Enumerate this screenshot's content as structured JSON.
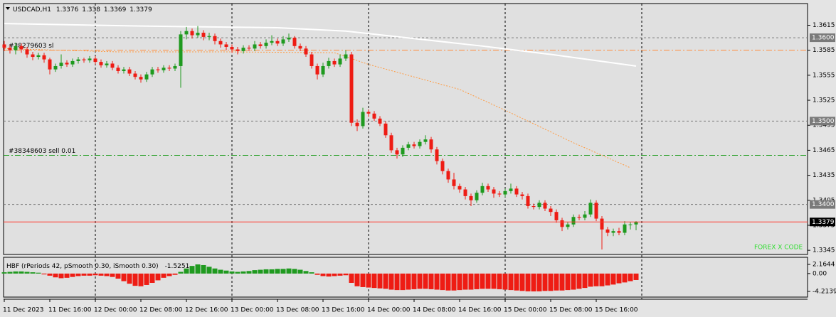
{
  "chart_data": [
    {
      "type": "candlestick",
      "symbol": "USDCAD,H1",
      "categories": [
        "11 Dec 2023",
        null,
        null,
        null,
        null,
        null,
        null,
        null,
        "11 Dec 16:00",
        null,
        null,
        null,
        null,
        null,
        null,
        null,
        "12 Dec 00:00",
        null,
        null,
        null,
        null,
        null,
        null,
        null,
        "12 Dec 08:00",
        null,
        null,
        null,
        null,
        null,
        null,
        null,
        "12 Dec 16:00",
        null,
        null,
        null,
        null,
        null,
        null,
        null,
        "13 Dec 00:00",
        null,
        null,
        null,
        null,
        null,
        null,
        null,
        "13 Dec 08:00",
        null,
        null,
        null,
        null,
        null,
        null,
        null,
        "13 Dec 16:00",
        null,
        null,
        null,
        null,
        null,
        null,
        null,
        "14 Dec 00:00",
        null,
        null,
        null,
        null,
        null,
        null,
        null,
        "14 Dec 08:00",
        null,
        null,
        null,
        null,
        null,
        null,
        null,
        "14 Dec 16:00",
        null,
        null,
        null,
        null,
        null,
        null,
        null,
        "15 Dec 00:00",
        null,
        null,
        null,
        null,
        null,
        null,
        null,
        "15 Dec 08:00",
        null,
        null,
        null,
        null,
        null,
        null,
        null,
        "15 Dec 16:00",
        null,
        null,
        null,
        null,
        null,
        null,
        null
      ],
      "open": [
        1.3592,
        1.3588,
        1.3585,
        1.359,
        1.3586,
        1.358,
        1.3577,
        1.3579,
        1.3574,
        1.3562,
        1.3566,
        1.357,
        1.3568,
        1.3572,
        1.3574,
        1.3573,
        1.3575,
        1.3571,
        1.3567,
        1.3569,
        1.3564,
        1.356,
        1.3562,
        1.3557,
        1.3553,
        1.355,
        1.3556,
        1.3562,
        1.3561,
        1.3564,
        1.3563,
        1.3566,
        1.3604,
        1.3608,
        1.3603,
        1.3606,
        1.3601,
        1.3602,
        1.3596,
        1.3592,
        1.3589,
        1.3586,
        1.3584,
        1.3588,
        1.3587,
        1.3592,
        1.359,
        1.3594,
        1.3596,
        1.3593,
        1.3598,
        1.36,
        1.359,
        1.3587,
        1.358,
        1.3566,
        1.3556,
        1.3566,
        1.3572,
        1.3568,
        1.3575,
        1.358,
        1.3498,
        1.3494,
        1.3511,
        1.3509,
        1.3503,
        1.3497,
        1.3483,
        1.3465,
        1.346,
        1.3468,
        1.3472,
        1.347,
        1.3475,
        1.3478,
        1.3466,
        1.3452,
        1.344,
        1.343,
        1.3422,
        1.3418,
        1.341,
        1.3405,
        1.3414,
        1.3422,
        1.3418,
        1.3413,
        1.3412,
        1.3416,
        1.3419,
        1.3412,
        1.341,
        1.3398,
        1.3397,
        1.3402,
        1.3395,
        1.3391,
        1.3381,
        1.3373,
        1.3376,
        1.3385,
        1.3384,
        1.3388,
        1.3402,
        1.3383,
        1.337,
        1.3366,
        1.3368,
        1.3366,
        1.3376,
        1.3376
      ],
      "high": [
        1.3596,
        1.3591,
        1.3594,
        1.3593,
        1.3589,
        1.3583,
        1.3582,
        1.3582,
        1.3576,
        1.3569,
        1.358,
        1.3573,
        1.3575,
        1.3577,
        1.3576,
        1.3578,
        1.3578,
        1.3574,
        1.3572,
        1.3572,
        1.3567,
        1.3565,
        1.3565,
        1.356,
        1.3556,
        1.3559,
        1.3565,
        1.3565,
        1.3567,
        1.3567,
        1.3569,
        1.3608,
        1.3613,
        1.3611,
        1.3614,
        1.3609,
        1.3606,
        1.3605,
        1.3599,
        1.3595,
        1.3592,
        1.3589,
        1.3591,
        1.3591,
        1.3596,
        1.3595,
        1.3598,
        1.3603,
        1.3599,
        1.3602,
        1.3605,
        1.3602,
        1.3593,
        1.359,
        1.3583,
        1.3569,
        1.357,
        1.3576,
        1.3575,
        1.358,
        1.3585,
        1.3583,
        1.3502,
        1.3516,
        1.3514,
        1.3512,
        1.3506,
        1.35,
        1.3486,
        1.3468,
        1.3471,
        1.3475,
        1.3475,
        1.3478,
        1.3483,
        1.3481,
        1.3469,
        1.3455,
        1.3443,
        1.3438,
        1.3425,
        1.3421,
        1.3413,
        1.3417,
        1.3426,
        1.3425,
        1.3421,
        1.3416,
        1.3419,
        1.3425,
        1.3422,
        1.3415,
        1.3413,
        1.3401,
        1.3405,
        1.3405,
        1.3398,
        1.3394,
        1.3384,
        1.3379,
        1.3388,
        1.3388,
        1.3392,
        1.3406,
        1.3405,
        1.3386,
        1.3373,
        1.3371,
        1.3372,
        1.338,
        1.3379,
        1.338
      ],
      "low": [
        1.3584,
        1.3581,
        1.358,
        1.3582,
        1.3576,
        1.3573,
        1.3574,
        1.357,
        1.3556,
        1.3559,
        1.3563,
        1.3565,
        1.3565,
        1.3569,
        1.357,
        1.357,
        1.3568,
        1.3564,
        1.3564,
        1.3561,
        1.3557,
        1.3557,
        1.3554,
        1.355,
        1.3546,
        1.3547,
        1.3553,
        1.3558,
        1.3558,
        1.356,
        1.356,
        1.354,
        1.3598,
        1.3599,
        1.36,
        1.3597,
        1.3597,
        1.3592,
        1.3588,
        1.3585,
        1.3582,
        1.358,
        1.3581,
        1.3584,
        1.3584,
        1.3587,
        1.3587,
        1.3591,
        1.359,
        1.359,
        1.3595,
        1.3587,
        1.3584,
        1.3577,
        1.3563,
        1.355,
        1.3553,
        1.3563,
        1.3565,
        1.3565,
        1.3572,
        1.3494,
        1.3488,
        1.3491,
        1.3505,
        1.35,
        1.3494,
        1.348,
        1.3462,
        1.3455,
        1.3457,
        1.3465,
        1.3467,
        1.3467,
        1.3472,
        1.3462,
        1.3448,
        1.3436,
        1.3426,
        1.3418,
        1.3414,
        1.3406,
        1.3398,
        1.3402,
        1.3411,
        1.3415,
        1.3408,
        1.3409,
        1.3409,
        1.3413,
        1.3409,
        1.3406,
        1.3395,
        1.3394,
        1.3394,
        1.3392,
        1.3386,
        1.3378,
        1.3368,
        1.337,
        1.3373,
        1.3381,
        1.3381,
        1.3385,
        1.338,
        1.3346,
        1.3362,
        1.3362,
        1.3363,
        1.3363,
        1.337,
        1.3369
      ],
      "close": [
        1.3588,
        1.3585,
        1.359,
        1.3586,
        1.358,
        1.3577,
        1.3579,
        1.3574,
        1.3562,
        1.3566,
        1.357,
        1.3568,
        1.3572,
        1.3574,
        1.3573,
        1.3575,
        1.3571,
        1.3567,
        1.3569,
        1.3564,
        1.356,
        1.3562,
        1.3557,
        1.3553,
        1.355,
        1.3556,
        1.3562,
        1.3561,
        1.3564,
        1.3563,
        1.3566,
        1.3604,
        1.3608,
        1.3603,
        1.3606,
        1.3601,
        1.3602,
        1.3596,
        1.3592,
        1.3589,
        1.3586,
        1.3584,
        1.3588,
        1.3587,
        1.3592,
        1.359,
        1.3594,
        1.3596,
        1.3593,
        1.3598,
        1.36,
        1.359,
        1.3587,
        1.358,
        1.3566,
        1.3556,
        1.3566,
        1.3572,
        1.3568,
        1.3575,
        1.358,
        1.3498,
        1.3494,
        1.3511,
        1.3509,
        1.3503,
        1.3497,
        1.3483,
        1.3465,
        1.346,
        1.3468,
        1.3472,
        1.347,
        1.3475,
        1.3478,
        1.3466,
        1.3452,
        1.344,
        1.343,
        1.3422,
        1.3418,
        1.341,
        1.3405,
        1.3414,
        1.3422,
        1.3418,
        1.3413,
        1.3412,
        1.3416,
        1.3419,
        1.3412,
        1.341,
        1.3398,
        1.3397,
        1.3402,
        1.3395,
        1.3391,
        1.3381,
        1.3373,
        1.3376,
        1.3385,
        1.3384,
        1.3388,
        1.3402,
        1.3383,
        1.337,
        1.3366,
        1.3368,
        1.3366,
        1.3376,
        1.3376,
        1.3379
      ],
      "up_color": "#1f9a1f",
      "down_color": "#ee1c14",
      "lines": [
        {
          "color": "#ffffff",
          "dash": false,
          "x": [
            0,
            24,
            48,
            60,
            72,
            84,
            96,
            111
          ],
          "values": [
            1.3617,
            1.3614,
            1.3612,
            1.3608,
            1.3599,
            1.359,
            1.358,
            1.3566
          ]
        },
        {
          "color": "#ff9a40",
          "dash": true,
          "x": [
            0,
            20,
            40,
            58,
            64,
            80,
            88,
            100,
            110
          ],
          "values": [
            1.3587,
            1.3583,
            1.3583,
            1.3582,
            1.3568,
            1.3538,
            1.3513,
            1.3474,
            1.3444
          ]
        }
      ],
      "levels": [
        {
          "value": 1.36,
          "label": "1.3600",
          "color": "#7a7a7a"
        },
        {
          "value": 1.35,
          "label": "1.3500",
          "color": "#7a7a7a"
        },
        {
          "value": 1.34,
          "label": "1.3400",
          "color": "#7a7a7a"
        }
      ],
      "orders": [
        {
          "value": 1.3585,
          "text": "#38279603 sl",
          "color": "#ff8a3c"
        },
        {
          "value": 1.3459,
          "text": "#38348603 sell 0.01",
          "color": "#1a9a1a"
        }
      ],
      "price_line_color": "#ff3b2f",
      "watermark": "FOREX X CODE",
      "ylim": [
        1.334,
        1.3641
      ],
      "yticks": [
        1.3615,
        1.3585,
        1.3555,
        1.3525,
        1.3495,
        1.3465,
        1.3435,
        1.3405,
        1.3375,
        1.3345
      ]
    },
    {
      "type": "histogram",
      "title": "HBF  (rPeriods 42, pSmooth 0.30, iSmooth 0.30)",
      "values": [
        0.3,
        0.4,
        0.5,
        0.5,
        0.4,
        0.3,
        0.2,
        -0.2,
        -0.5,
        -0.9,
        -1.1,
        -1.0,
        -0.8,
        -0.6,
        -0.5,
        -0.5,
        -0.4,
        -0.5,
        -0.6,
        -0.8,
        -1.2,
        -1.8,
        -2.4,
        -2.9,
        -3.0,
        -2.7,
        -2.2,
        -1.6,
        -1.0,
        -0.6,
        -0.3,
        0.4,
        1.2,
        1.8,
        2.16,
        2.0,
        1.6,
        1.2,
        0.9,
        0.7,
        0.5,
        0.4,
        0.5,
        0.6,
        0.8,
        0.9,
        1.0,
        1.0,
        1.1,
        1.1,
        1.2,
        1.1,
        0.9,
        0.6,
        0.3,
        -0.3,
        -0.6,
        -0.7,
        -0.6,
        -0.5,
        -0.4,
        -2.2,
        -3.0,
        -3.2,
        -3.3,
        -3.4,
        -3.5,
        -3.6,
        -3.8,
        -3.9,
        -3.9,
        -3.8,
        -3.7,
        -3.6,
        -3.6,
        -3.7,
        -3.8,
        -3.9,
        -4.0,
        -4.0,
        -3.9,
        -3.8,
        -3.8,
        -3.7,
        -3.6,
        -3.6,
        -3.6,
        -3.7,
        -3.8,
        -3.9,
        -4.0,
        -4.1,
        -4.2,
        -4.2139,
        -4.2,
        -4.1,
        -4.1,
        -4.0,
        -4.0,
        -3.9,
        -3.8,
        -3.6,
        -3.4,
        -3.1,
        -3.0,
        -3.0,
        -2.8,
        -2.6,
        -2.3,
        -2.1,
        -1.8,
        -1.5251
      ],
      "up_color": "#1f9a1f",
      "down_color": "#ee1c14",
      "ylim": [
        -5.56,
        3.84
      ],
      "yticks": [
        2.1644,
        {
          "value": 0,
          "label": "0.00"
        },
        -4.2139
      ]
    }
  ]
}
